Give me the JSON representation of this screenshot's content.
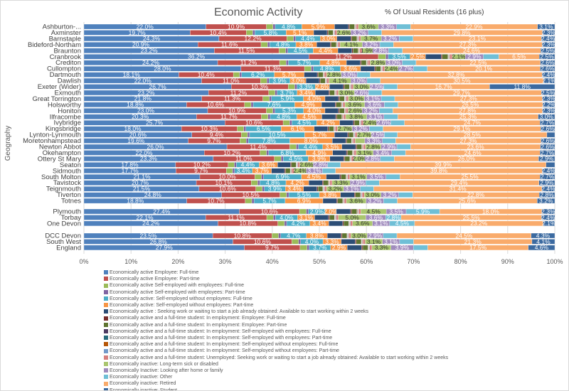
{
  "chart_data": {
    "type": "bar",
    "orientation": "horizontal",
    "stacked": "percent",
    "title": "Economic Activity",
    "subtitle": "% Of Usual Residents (16 plus)",
    "ylabel": "Geography",
    "xlim": [
      0,
      100
    ],
    "xticks": [
      "0%",
      "10%",
      "20%",
      "30%",
      "40%",
      "50%",
      "60%",
      "70%",
      "80%",
      "90%",
      "100%"
    ],
    "grid": true,
    "legend_position": "bottom",
    "series": [
      {
        "name": "Economically active Employee: Full-time",
        "color": "#4f81bd"
      },
      {
        "name": "Economically active  Employee: Part-time",
        "color": "#c0504d"
      },
      {
        "name": "Economically active  Self-employed with employees: Full-time",
        "color": "#9bbb59",
        "estimate": 1.2
      },
      {
        "name": "Economically active  Self-employed with employees: Part-time",
        "color": "#8064a2",
        "estimate": 0.4
      },
      {
        "name": "Economically active: Self-employed without employees: Full-time",
        "color": "#4bacc6"
      },
      {
        "name": "Economically active: Self-employed without employees: Part-time",
        "color": "#f79646"
      },
      {
        "name": "Economically active : Seeking work or waiting to start a job already obtained: Available to start working within 2 weeks",
        "color": "#2c4d75",
        "estimate": 2.5
      },
      {
        "name": "Economically active and a full-time student: In employment: Employee: Full-time",
        "color": "#772c2a",
        "estimate": 0.2
      },
      {
        "name": "Economically active and a full-time student: In employment: Employee: Part-time",
        "color": "#5f7530",
        "estimate": 0.9
      },
      {
        "name": "Economically active and a full-time student: In employment: Self-employed with employees: Full-time",
        "color": "#4d3b62",
        "estimate": 0.05
      },
      {
        "name": "Economically active and a full-time student: In employment: Self-employed with employees: Part-time",
        "color": "#276a7c",
        "estimate": 0.05
      },
      {
        "name": "Economically active and a full-time student: In employment: Self-employed without employees: Full-time",
        "color": "#b65708",
        "estimate": 0.1
      },
      {
        "name": "Economically active and a full-time student: In employment: Self-employed without employees: Part-time",
        "color": "#729aca",
        "estimate": 0.1
      },
      {
        "name": "Economically active and a full-time student: Unemployed: Seeking work or waiting to start a job already obtained: Available to start working within 2 weeks",
        "color": "#d6807e",
        "estimate": 0.4
      },
      {
        "name": "Economically inactive: Long-term sick or disabled",
        "color": "#aac66f"
      },
      {
        "name": "Economically Inactive: Looking after home or family",
        "color": "#a08bbd"
      },
      {
        "name": "Economically inactive: Other",
        "color": "#6fbfd6",
        "estimate": 2.5
      },
      {
        "name": "Economically inactive: Retired",
        "color": "#f9ab6b"
      },
      {
        "name": "Economically inactive: Student",
        "color": "#3b6aa0"
      }
    ],
    "labeled_series": [
      0,
      1,
      4,
      5,
      14,
      15,
      17,
      18
    ],
    "groups": [
      [
        {
          "name": "Ashburton-...",
          "v": [
            22.0,
            10.9,
            4.8,
            5.9,
            3.6,
            3.3,
            22.9,
            3.1
          ]
        },
        {
          "name": "Axminster",
          "v": [
            19.7,
            10.4,
            5.8,
            5.1,
            2.6,
            3.2,
            29.8,
            2.3
          ]
        },
        {
          "name": "Barnstaple",
          "v": [
            24.3,
            12.2,
            4.4,
            3.0,
            3.7,
            3.2,
            23.1,
            2.4
          ]
        },
        {
          "name": "Bideford-Northam",
          "v": [
            20.9,
            11.6,
            4.8,
            3.8,
            4.1,
            3.2,
            27.3,
            2.3
          ]
        },
        {
          "name": "Braunton",
          "v": [
            23.2,
            11.5,
            4.5,
            4.4,
            1.9,
            2.8,
            24.6,
            2.5
          ]
        },
        {
          "name": "Cranbrook",
          "v": [
            36.2,
            11.2,
            3.5,
            2.5,
            2.1,
            2.9,
            6.5,
            2.5
          ]
        },
        {
          "name": "Crediton",
          "v": [
            24.2,
            11.2,
            5.7,
            4.8,
            2.8,
            3.0,
            22.5,
            2.6
          ]
        },
        {
          "name": "Cullompton",
          "v": [
            28.0,
            11.3,
            4.8,
            3.6,
            2.4,
            2.7,
            20.1,
            2.6
          ]
        },
        {
          "name": "Dartmouth",
          "v": [
            18.1,
            10.4,
            6.2,
            5.7,
            2.8,
            3.0,
            32.8,
            2.4
          ]
        },
        {
          "name": "Dawlish",
          "v": [
            22.0,
            11.0,
            3.9,
            3.0,
            4.1,
            3.0,
            30.5,
            2.1
          ]
        },
        {
          "name": "Exeter (Wider)",
          "v": [
            26.7,
            10.3,
            3.3,
            2.6,
            3.0,
            2.5,
            16.7,
            11.8
          ]
        },
        {
          "name": "Exmouth",
          "v": [
            23.2,
            11.2,
            3.7,
            3.4,
            3.0,
            2.6,
            29.7,
            2.5
          ]
        },
        {
          "name": "Great Torrington",
          "v": [
            21.8,
            11.3,
            5.9,
            4.0,
            3.0,
            3.1,
            27.3,
            2.3
          ]
        },
        {
          "name": "Holsworthy",
          "v": [
            18.8,
            10.6,
            7.6,
            4.9,
            3.6,
            3.6,
            26.5,
            2.2
          ]
        },
        {
          "name": "Honiton",
          "v": [
            23.0,
            10.9,
            5.3,
            4.0,
            2.6,
            3.2,
            27.8,
            2.3
          ]
        },
        {
          "name": "Ilfracombe",
          "v": [
            20.3,
            11.7,
            4.8,
            4.5,
            3.8,
            3.1,
            25.3,
            3.0
          ]
        },
        {
          "name": "Ivybridge",
          "v": [
            25.7,
            10.6,
            4.5,
            4.2,
            2.4,
            2.6,
            24.7,
            2.7
          ]
        },
        {
          "name": "Kingsbridge",
          "v": [
            18.0,
            10.3,
            6.5,
            6.1,
            2.7,
            3.2,
            29.1,
            2.6
          ]
        },
        {
          "name": "Lynton-Lynmouth",
          "v": [
            20.6,
            9.4,
            10.5,
            5.7,
            2.7,
            2.5,
            28.5,
            1.5
          ]
        },
        {
          "name": "Moretonhampstead",
          "v": [
            19.6,
            9.7,
            7.8,
            8.0,
            1.8,
            3.3,
            27.3,
            2.6
          ]
        },
        {
          "name": "Newton Abbot",
          "v": [
            26.0,
            11.4,
            4.4,
            3.5,
            2.8,
            2.9,
            23.6,
            2.6
          ]
        },
        {
          "name": "Okehampton",
          "v": [
            22.0,
            10.2,
            6.8,
            4.9,
            3.1,
            3.4,
            24.6,
            2.7
          ]
        },
        {
          "name": "Ottery St Mary",
          "v": [
            23.3,
            11.0,
            4.5,
            3.9,
            2.0,
            2.8,
            26.0,
            2.9
          ]
        },
        {
          "name": "Seaton",
          "v": [
            17.8,
            10.2,
            4.4,
            3.6,
            2.6,
            2.8,
            39.9,
            1.7
          ]
        },
        {
          "name": "Sidmouth",
          "v": [
            17.7,
            9.7,
            3.4,
            3.7,
            2.4,
            3.1,
            39.8,
            2.4
          ]
        },
        {
          "name": "South Molton",
          "v": [
            21.1,
            10.0,
            6.9,
            4.5,
            3.1,
            3.5,
            25.5,
            2.7
          ]
        },
        {
          "name": "Tavistock",
          "v": [
            20.7,
            10.1,
            4.8,
            4.2,
            3.3,
            2.9,
            29.4,
            2.9
          ]
        },
        {
          "name": "Teignmouth",
          "v": [
            21.5,
            10.6,
            3.9,
            3.4,
            3.2,
            3.1,
            31.4,
            2.4
          ]
        },
        {
          "name": "Tiverton",
          "v": [
            24.8,
            10.5,
            5.5,
            3.8,
            3.0,
            3.2,
            22.8,
            2.8
          ]
        },
        {
          "name": "Totnes",
          "v": [
            18.8,
            10.7,
            5.7,
            6.9,
            3.6,
            3.2,
            25.6,
            3.2
          ]
        }
      ],
      [
        {
          "name": "Plymouth",
          "v": [
            27.4,
            10.6,
            2.9,
            2.0,
            4.5,
            3.5,
            18.0,
            2.3
          ],
          "other": 5.9
        },
        {
          "name": "Torbay",
          "v": [
            22.1,
            11.1,
            4.0,
            3.1,
            5.0,
            3.6,
            25.5,
            2.4
          ],
          "other": 2.8
        },
        {
          "name": "One Devon",
          "v": [
            24.2,
            10.8,
            4.2,
            3.4,
            3.6,
            3.1,
            23.2,
            2.1
          ],
          "other": 4.5
        }
      ],
      [
        {
          "name": "DCC Devon",
          "v": [
            23.5,
            10.8,
            4.7,
            3.8,
            3.0,
            2.9,
            24.5,
            4.3
          ]
        },
        {
          "name": "South West",
          "v": [
            26.8,
            10.6,
            4.0,
            3.3,
            3.1,
            3.1,
            21.3,
            4.1
          ]
        },
        {
          "name": "England",
          "v": [
            27.9,
            9.7,
            3.7,
            2.9,
            3.3,
            3.9,
            17.5,
            4.6
          ]
        }
      ]
    ]
  }
}
